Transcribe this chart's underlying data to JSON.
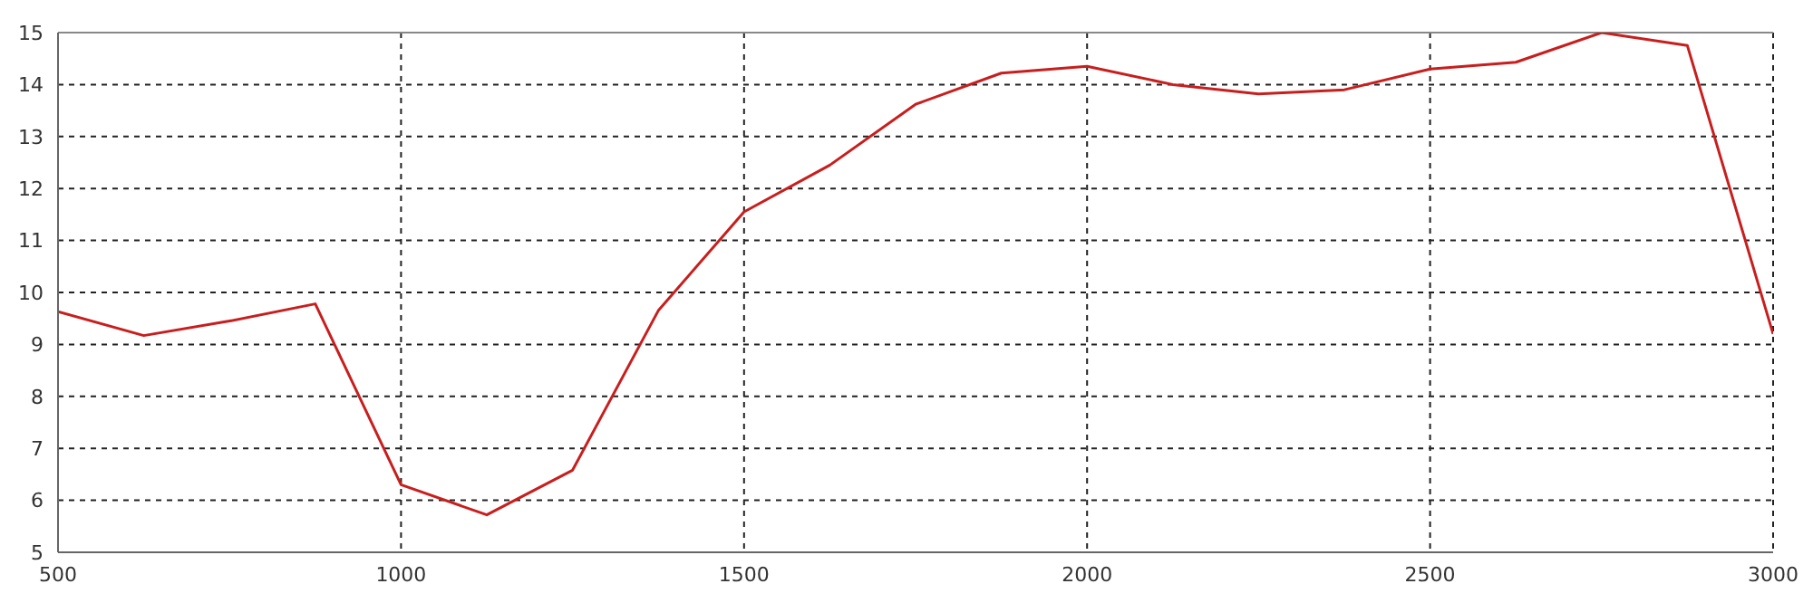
{
  "chart_data": {
    "type": "line",
    "x": [
      500,
      625,
      750,
      875,
      1000,
      1125,
      1250,
      1375,
      1500,
      1625,
      1750,
      1875,
      2000,
      2125,
      2250,
      2375,
      2500,
      2625,
      2750,
      2875,
      3000
    ],
    "series": [
      {
        "color": "#c81e1e",
        "values": [
          9.63,
          9.17,
          9.45,
          9.78,
          6.3,
          5.72,
          6.58,
          9.65,
          11.55,
          12.45,
          13.62,
          14.22,
          14.35,
          14.0,
          13.82,
          13.9,
          14.3,
          14.43,
          15.0,
          14.75,
          9.2
        ]
      }
    ],
    "xlim": [
      500,
      3000
    ],
    "xticks": [
      500,
      1000,
      1500,
      2000,
      2500,
      3000
    ],
    "ylim": [
      5,
      15
    ],
    "yticks": [
      5,
      6,
      7,
      8,
      9,
      10,
      11,
      12,
      13,
      14,
      15
    ],
    "grid": true,
    "marker": "none",
    "line_style": "solid"
  }
}
